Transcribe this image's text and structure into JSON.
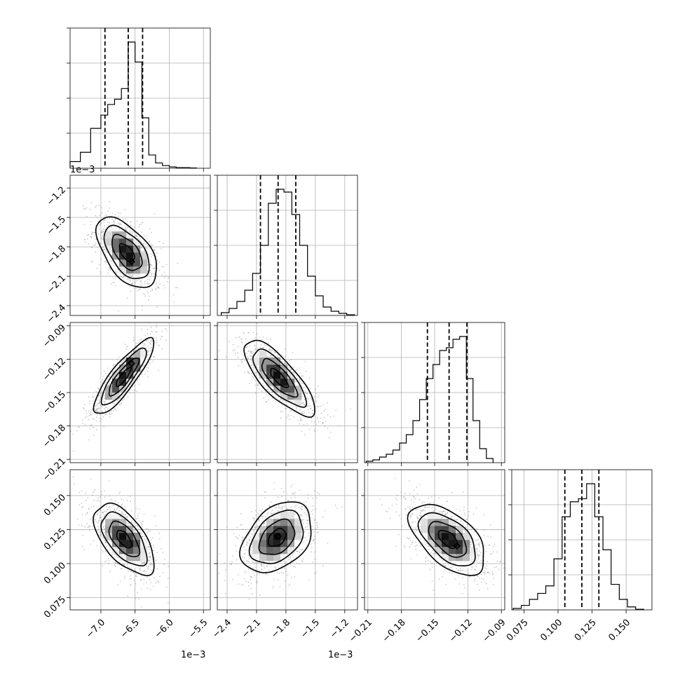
{
  "chart_data": {
    "type": "scatter",
    "kind": "corner_plot",
    "n_params": 4,
    "params": [
      {
        "range": [
          -0.00745,
          -0.0054
        ],
        "ticks": [
          -0.007,
          -0.0065,
          -0.006,
          -0.0055
        ],
        "tick_labels": [
          "−7.0",
          "−6.5",
          "−6.0",
          "−5.5"
        ],
        "offset_label": "1e−3",
        "quantiles": [
          -0.00694,
          -0.0066,
          -0.00639
        ],
        "hist_bins": [
          -0.00745,
          -0.0073,
          -0.00715,
          -0.007,
          -0.0069,
          -0.0068,
          -0.0067,
          -0.0066,
          -0.0065,
          -0.0064,
          -0.0063,
          -0.0062,
          -0.0061,
          -0.006,
          -0.0059,
          -0.0058,
          -0.0057,
          -0.0056
        ],
        "hist_counts": [
          0.05,
          0.12,
          0.3,
          0.4,
          0.48,
          0.52,
          0.6,
          0.95,
          0.8,
          0.38,
          0.1,
          0.04,
          0.02,
          0.01,
          0.005,
          0.005,
          0.002
        ]
      },
      {
        "range": [
          -0.0025,
          -0.00107
        ],
        "ticks": [
          -0.0024,
          -0.0021,
          -0.0018,
          -0.0015,
          -0.0012
        ],
        "tick_labels": [
          "−2.4",
          "−2.1",
          "−1.8",
          "−1.5",
          "−1.2"
        ],
        "offset_label": "1e−3",
        "quantiles": [
          -0.00206,
          -0.00188,
          -0.0017
        ],
        "hist_bins": [
          -0.00246,
          -0.00238,
          -0.0023,
          -0.00222,
          -0.00214,
          -0.00206,
          -0.00198,
          -0.0019,
          -0.00182,
          -0.00174,
          -0.00166,
          -0.00158,
          -0.0015,
          -0.00142,
          -0.00134,
          -0.00126,
          -0.00118,
          -0.0011
        ],
        "hist_counts": [
          0.02,
          0.05,
          0.1,
          0.18,
          0.3,
          0.5,
          0.8,
          0.9,
          0.88,
          0.72,
          0.5,
          0.28,
          0.14,
          0.06,
          0.03,
          0.015,
          0.005
        ]
      },
      {
        "range": [
          -0.213,
          -0.087
        ],
        "ticks": [
          -0.21,
          -0.18,
          -0.15,
          -0.12,
          -0.09
        ],
        "tick_labels": [
          "−0.21",
          "−0.18",
          "−0.15",
          "−0.12",
          "−0.09"
        ],
        "offset_label": "",
        "quantiles": [
          -0.1565,
          -0.137,
          -0.121
        ],
        "hist_bins": [
          -0.2115,
          -0.2055,
          -0.1995,
          -0.1935,
          -0.1875,
          -0.1815,
          -0.1755,
          -0.1695,
          -0.1635,
          -0.1575,
          -0.1515,
          -0.1455,
          -0.1395,
          -0.1335,
          -0.1275,
          -0.1215,
          -0.1155,
          -0.1095,
          -0.1035,
          -0.0975
        ],
        "hist_counts": [
          0.01,
          0.02,
          0.04,
          0.06,
          0.09,
          0.14,
          0.2,
          0.3,
          0.45,
          0.6,
          0.7,
          0.8,
          0.82,
          0.88,
          0.9,
          0.6,
          0.3,
          0.1,
          0.03
        ]
      },
      {
        "range": [
          0.066,
          0.169
        ],
        "ticks": [
          0.075,
          0.1,
          0.125,
          0.15
        ],
        "tick_labels": [
          "0.075",
          "0.100",
          "0.125",
          "0.150"
        ],
        "offset_label": "",
        "quantiles": [
          0.105,
          0.1175,
          0.13
        ],
        "hist_bins": [
          0.067,
          0.073,
          0.079,
          0.085,
          0.091,
          0.097,
          0.103,
          0.109,
          0.115,
          0.121,
          0.127,
          0.133,
          0.139,
          0.145,
          0.151,
          0.157,
          0.163
        ],
        "hist_counts": [
          0.01,
          0.03,
          0.07,
          0.11,
          0.16,
          0.34,
          0.62,
          0.72,
          0.74,
          0.84,
          0.62,
          0.4,
          0.17,
          0.07,
          0.02,
          0.004
        ]
      }
    ],
    "pairs": [
      {
        "row": 1,
        "col": 0,
        "mean": [
          -0.00662,
          -0.00186
        ],
        "sd": [
          0.00022,
          0.00018
        ],
        "corr": -0.55,
        "peak": [
          -0.00655,
          -0.00195
        ],
        "peak_marker": true
      },
      {
        "row": 2,
        "col": 0,
        "mean": [
          -0.00667,
          -0.136
        ],
        "sd": [
          0.00022,
          0.017
        ],
        "corr": 0.86,
        "peak": [
          -0.00655,
          -0.124
        ],
        "peak_marker": true
      },
      {
        "row": 2,
        "col": 1,
        "mean": [
          -0.00187,
          -0.137
        ],
        "sd": [
          0.00018,
          0.017
        ],
        "corr": -0.78,
        "peak": [
          -0.00192,
          -0.131
        ],
        "peak_marker": false
      },
      {
        "row": 3,
        "col": 0,
        "mean": [
          -0.00666,
          0.118
        ],
        "sd": [
          0.00022,
          0.013
        ],
        "corr": -0.6,
        "peak": [
          -0.00655,
          0.115
        ],
        "peak_marker": false
      },
      {
        "row": 3,
        "col": 1,
        "mean": [
          -0.00189,
          0.119
        ],
        "sd": [
          0.00018,
          0.013
        ],
        "corr": 0.38,
        "peak": [
          -0.00188,
          0.12
        ],
        "peak_marker": true
      },
      {
        "row": 3,
        "col": 2,
        "mean": [
          -0.138,
          0.118
        ],
        "sd": [
          0.017,
          0.013
        ],
        "corr": -0.55,
        "peak": [
          -0.13,
          0.113
        ],
        "peak_marker": true
      }
    ],
    "contour_levels_sigma": [
      0.5,
      1.0,
      1.5,
      2.0
    ],
    "grid": true,
    "legend": "none"
  }
}
